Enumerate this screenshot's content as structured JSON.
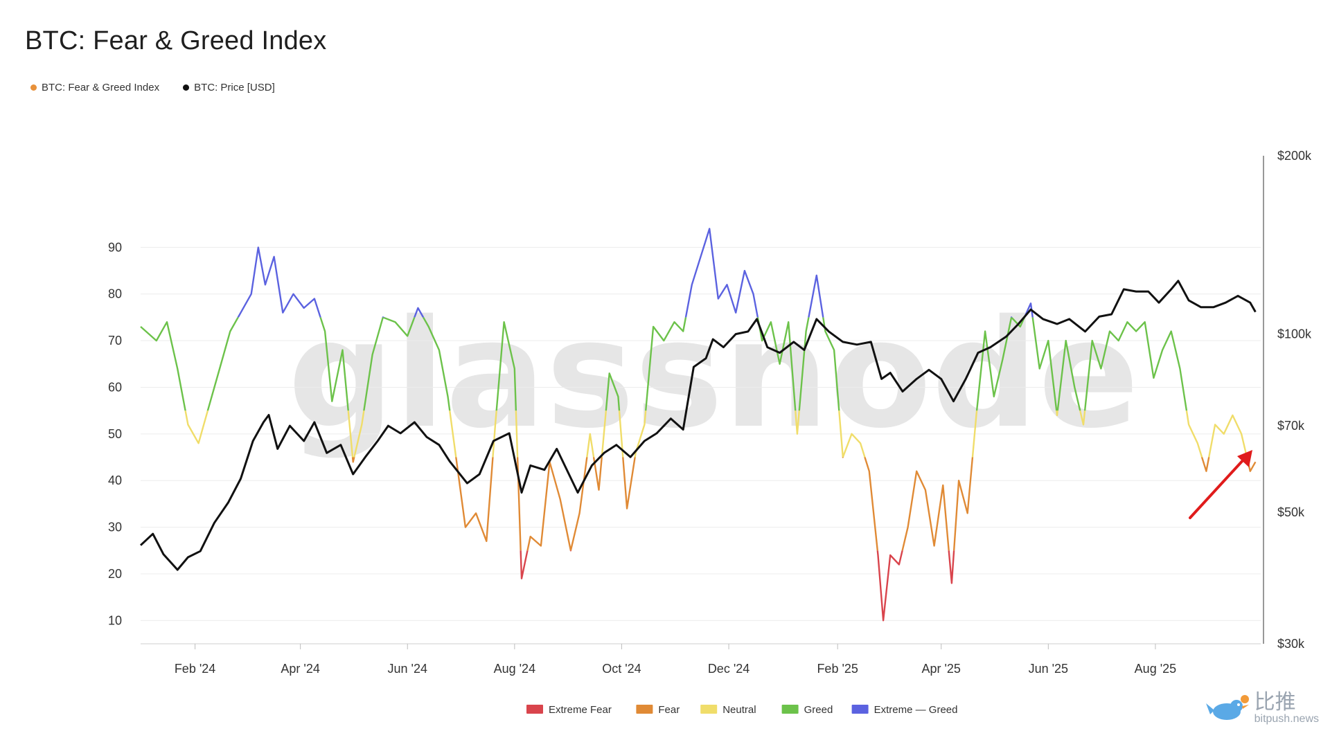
{
  "title": "BTC: Fear & Greed Index",
  "top_legend": [
    {
      "label": "BTC: Fear & Greed Index",
      "color": "#e8913a"
    },
    {
      "label": "BTC: Price [USD]",
      "color": "#111111"
    }
  ],
  "bottom_legend": [
    {
      "label": "Extreme Fear",
      "color": "#d9444c"
    },
    {
      "label": "Fear",
      "color": "#e08a35"
    },
    {
      "label": "Neutral",
      "color": "#f0dd6a"
    },
    {
      "label": "Greed",
      "color": "#6cc24a"
    },
    {
      "label": "Extreme — Greed",
      "color": "#5b62e0"
    }
  ],
  "watermark": "glassnode",
  "brand": {
    "name": "比推",
    "url": "bitpush.news"
  },
  "chart_data": {
    "type": "line",
    "x_ticks": [
      "Feb '24",
      "Apr '24",
      "Jun '24",
      "Aug '24",
      "Oct '24",
      "Dec '24",
      "Feb '25",
      "Apr '25",
      "Jun '25",
      "Aug '25"
    ],
    "x_range": [
      "2024-01-01",
      "2025-09-30"
    ],
    "y_left": {
      "ticks": [
        "10",
        "20",
        "30",
        "40",
        "50",
        "60",
        "70",
        "80",
        "90"
      ],
      "range": [
        5,
        100
      ]
    },
    "y_right": {
      "ticks": [
        "$200k",
        "$100k",
        "$70k",
        "$50k",
        "$30k"
      ],
      "range": [
        30000,
        200000
      ],
      "scale": "log"
    },
    "zone_thresholds": {
      "extreme_fear": 25,
      "fear": 45,
      "neutral": 55,
      "greed": 75
    },
    "zone_colors": {
      "extreme_fear": "#d9444c",
      "fear": "#e08a35",
      "neutral": "#f0dd6a",
      "greed": "#6cc24a",
      "extreme_greed": "#5b62e0"
    },
    "series": [
      {
        "name": "BTC: Fear & Greed Index",
        "axis": "left",
        "points": [
          [
            "2024-01-01",
            73
          ],
          [
            "2024-01-10",
            70
          ],
          [
            "2024-01-16",
            74
          ],
          [
            "2024-01-22",
            64
          ],
          [
            "2024-01-28",
            52
          ],
          [
            "2024-02-03",
            48
          ],
          [
            "2024-02-09",
            56
          ],
          [
            "2024-02-15",
            64
          ],
          [
            "2024-02-21",
            72
          ],
          [
            "2024-02-27",
            76
          ],
          [
            "2024-03-04",
            80
          ],
          [
            "2024-03-08",
            90
          ],
          [
            "2024-03-12",
            82
          ],
          [
            "2024-03-17",
            88
          ],
          [
            "2024-03-22",
            76
          ],
          [
            "2024-03-28",
            80
          ],
          [
            "2024-04-03",
            77
          ],
          [
            "2024-04-09",
            79
          ],
          [
            "2024-04-15",
            72
          ],
          [
            "2024-04-19",
            57
          ],
          [
            "2024-04-25",
            68
          ],
          [
            "2024-05-01",
            44
          ],
          [
            "2024-05-06",
            52
          ],
          [
            "2024-05-12",
            67
          ],
          [
            "2024-05-18",
            75
          ],
          [
            "2024-05-25",
            74
          ],
          [
            "2024-06-01",
            71
          ],
          [
            "2024-06-07",
            77
          ],
          [
            "2024-06-13",
            73
          ],
          [
            "2024-06-19",
            68
          ],
          [
            "2024-06-24",
            58
          ],
          [
            "2024-06-29",
            44
          ],
          [
            "2024-07-04",
            30
          ],
          [
            "2024-07-10",
            33
          ],
          [
            "2024-07-16",
            27
          ],
          [
            "2024-07-21",
            52
          ],
          [
            "2024-07-26",
            74
          ],
          [
            "2024-08-01",
            64
          ],
          [
            "2024-08-05",
            19
          ],
          [
            "2024-08-10",
            28
          ],
          [
            "2024-08-16",
            26
          ],
          [
            "2024-08-21",
            44
          ],
          [
            "2024-08-27",
            36
          ],
          [
            "2024-09-02",
            25
          ],
          [
            "2024-09-07",
            33
          ],
          [
            "2024-09-13",
            50
          ],
          [
            "2024-09-18",
            38
          ],
          [
            "2024-09-24",
            63
          ],
          [
            "2024-09-29",
            58
          ],
          [
            "2024-10-04",
            34
          ],
          [
            "2024-10-09",
            46
          ],
          [
            "2024-10-14",
            52
          ],
          [
            "2024-10-19",
            73
          ],
          [
            "2024-10-25",
            70
          ],
          [
            "2024-10-31",
            74
          ],
          [
            "2024-11-05",
            72
          ],
          [
            "2024-11-10",
            82
          ],
          [
            "2024-11-15",
            88
          ],
          [
            "2024-11-20",
            94
          ],
          [
            "2024-11-25",
            79
          ],
          [
            "2024-11-30",
            82
          ],
          [
            "2024-12-05",
            76
          ],
          [
            "2024-12-10",
            85
          ],
          [
            "2024-12-15",
            80
          ],
          [
            "2024-12-20",
            70
          ],
          [
            "2024-12-25",
            74
          ],
          [
            "2024-12-30",
            65
          ],
          [
            "2025-01-04",
            74
          ],
          [
            "2025-01-09",
            50
          ],
          [
            "2025-01-14",
            72
          ],
          [
            "2025-01-20",
            84
          ],
          [
            "2025-01-25",
            72
          ],
          [
            "2025-01-30",
            68
          ],
          [
            "2025-02-04",
            45
          ],
          [
            "2025-02-09",
            50
          ],
          [
            "2025-02-14",
            48
          ],
          [
            "2025-02-19",
            42
          ],
          [
            "2025-02-24",
            24
          ],
          [
            "2025-02-27",
            10
          ],
          [
            "2025-03-03",
            24
          ],
          [
            "2025-03-08",
            22
          ],
          [
            "2025-03-13",
            30
          ],
          [
            "2025-03-18",
            42
          ],
          [
            "2025-03-23",
            38
          ],
          [
            "2025-03-28",
            26
          ],
          [
            "2025-04-02",
            39
          ],
          [
            "2025-04-07",
            18
          ],
          [
            "2025-04-11",
            40
          ],
          [
            "2025-04-16",
            33
          ],
          [
            "2025-04-21",
            54
          ],
          [
            "2025-04-26",
            72
          ],
          [
            "2025-05-01",
            58
          ],
          [
            "2025-05-06",
            66
          ],
          [
            "2025-05-11",
            75
          ],
          [
            "2025-05-16",
            73
          ],
          [
            "2025-05-22",
            78
          ],
          [
            "2025-05-27",
            64
          ],
          [
            "2025-06-01",
            70
          ],
          [
            "2025-06-06",
            54
          ],
          [
            "2025-06-11",
            70
          ],
          [
            "2025-06-16",
            60
          ],
          [
            "2025-06-21",
            52
          ],
          [
            "2025-06-26",
            70
          ],
          [
            "2025-07-01",
            64
          ],
          [
            "2025-07-06",
            72
          ],
          [
            "2025-07-11",
            70
          ],
          [
            "2025-07-16",
            74
          ],
          [
            "2025-07-21",
            72
          ],
          [
            "2025-07-26",
            74
          ],
          [
            "2025-07-31",
            62
          ],
          [
            "2025-08-05",
            68
          ],
          [
            "2025-08-10",
            72
          ],
          [
            "2025-08-15",
            64
          ],
          [
            "2025-08-20",
            52
          ],
          [
            "2025-08-25",
            48
          ],
          [
            "2025-08-30",
            42
          ],
          [
            "2025-09-04",
            52
          ],
          [
            "2025-09-09",
            50
          ],
          [
            "2025-09-14",
            54
          ],
          [
            "2025-09-19",
            50
          ],
          [
            "2025-09-24",
            42
          ],
          [
            "2025-09-27",
            44
          ]
        ]
      },
      {
        "name": "BTC: Price [USD]",
        "axis": "right",
        "color": "#111111",
        "points": [
          [
            "2024-01-01",
            44000
          ],
          [
            "2024-01-08",
            46000
          ],
          [
            "2024-01-14",
            42500
          ],
          [
            "2024-01-22",
            40000
          ],
          [
            "2024-01-28",
            42000
          ],
          [
            "2024-02-04",
            43000
          ],
          [
            "2024-02-12",
            48000
          ],
          [
            "2024-02-20",
            52000
          ],
          [
            "2024-02-27",
            57000
          ],
          [
            "2024-03-05",
            66000
          ],
          [
            "2024-03-11",
            71000
          ],
          [
            "2024-03-14",
            73000
          ],
          [
            "2024-03-19",
            64000
          ],
          [
            "2024-03-26",
            70000
          ],
          [
            "2024-04-03",
            66000
          ],
          [
            "2024-04-09",
            71000
          ],
          [
            "2024-04-16",
            63000
          ],
          [
            "2024-04-24",
            65000
          ],
          [
            "2024-05-01",
            58000
          ],
          [
            "2024-05-08",
            62000
          ],
          [
            "2024-05-15",
            66000
          ],
          [
            "2024-05-21",
            70000
          ],
          [
            "2024-05-28",
            68000
          ],
          [
            "2024-06-05",
            71000
          ],
          [
            "2024-06-12",
            67000
          ],
          [
            "2024-06-19",
            65000
          ],
          [
            "2024-06-25",
            61000
          ],
          [
            "2024-07-05",
            56000
          ],
          [
            "2024-07-12",
            58000
          ],
          [
            "2024-07-20",
            66000
          ],
          [
            "2024-07-29",
            68000
          ],
          [
            "2024-08-05",
            54000
          ],
          [
            "2024-08-10",
            60000
          ],
          [
            "2024-08-18",
            59000
          ],
          [
            "2024-08-25",
            64000
          ],
          [
            "2024-09-06",
            54000
          ],
          [
            "2024-09-14",
            60000
          ],
          [
            "2024-09-21",
            63000
          ],
          [
            "2024-09-28",
            65000
          ],
          [
            "2024-10-06",
            62000
          ],
          [
            "2024-10-14",
            66000
          ],
          [
            "2024-10-21",
            68000
          ],
          [
            "2024-10-29",
            72000
          ],
          [
            "2024-11-05",
            69000
          ],
          [
            "2024-11-11",
            88000
          ],
          [
            "2024-11-18",
            91000
          ],
          [
            "2024-11-22",
            98000
          ],
          [
            "2024-11-28",
            95000
          ],
          [
            "2024-12-05",
            100000
          ],
          [
            "2024-12-12",
            101000
          ],
          [
            "2024-12-17",
            106000
          ],
          [
            "2024-12-23",
            95000
          ],
          [
            "2024-12-30",
            93000
          ],
          [
            "2025-01-07",
            97000
          ],
          [
            "2025-01-13",
            94000
          ],
          [
            "2025-01-20",
            106000
          ],
          [
            "2025-01-27",
            101000
          ],
          [
            "2025-02-04",
            97000
          ],
          [
            "2025-02-12",
            96000
          ],
          [
            "2025-02-20",
            97000
          ],
          [
            "2025-02-26",
            84000
          ],
          [
            "2025-03-03",
            86000
          ],
          [
            "2025-03-10",
            80000
          ],
          [
            "2025-03-18",
            84000
          ],
          [
            "2025-03-25",
            87000
          ],
          [
            "2025-04-01",
            84000
          ],
          [
            "2025-04-08",
            77000
          ],
          [
            "2025-04-15",
            84000
          ],
          [
            "2025-04-22",
            93000
          ],
          [
            "2025-04-29",
            95000
          ],
          [
            "2025-05-08",
            99000
          ],
          [
            "2025-05-15",
            104000
          ],
          [
            "2025-05-22",
            110000
          ],
          [
            "2025-05-29",
            106000
          ],
          [
            "2025-06-06",
            104000
          ],
          [
            "2025-06-13",
            106000
          ],
          [
            "2025-06-22",
            101000
          ],
          [
            "2025-06-30",
            107000
          ],
          [
            "2025-07-07",
            108000
          ],
          [
            "2025-07-14",
            119000
          ],
          [
            "2025-07-21",
            118000
          ],
          [
            "2025-07-28",
            118000
          ],
          [
            "2025-08-03",
            113000
          ],
          [
            "2025-08-10",
            119000
          ],
          [
            "2025-08-14",
            123000
          ],
          [
            "2025-08-20",
            114000
          ],
          [
            "2025-08-27",
            111000
          ],
          [
            "2025-09-03",
            111000
          ],
          [
            "2025-09-10",
            113000
          ],
          [
            "2025-09-17",
            116000
          ],
          [
            "2025-09-24",
            113000
          ],
          [
            "2025-09-27",
            109000
          ]
        ]
      }
    ]
  }
}
